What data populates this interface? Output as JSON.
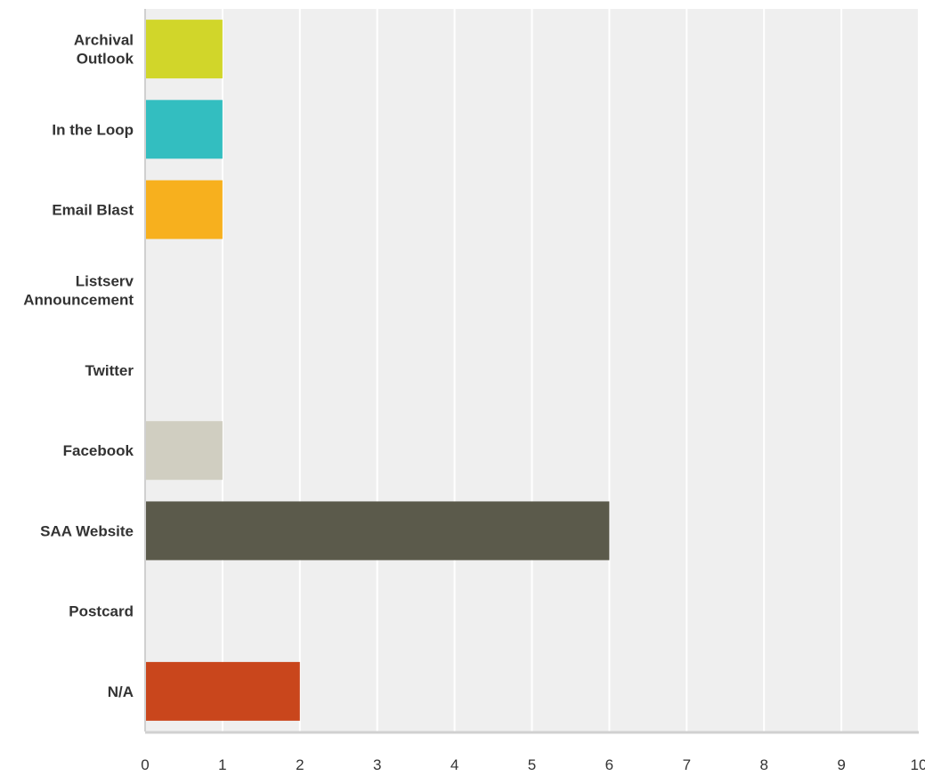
{
  "chart_data": {
    "type": "bar",
    "orientation": "horizontal",
    "title": "",
    "xlabel": "",
    "ylabel": "",
    "categories": [
      [
        "Archival",
        "Outlook"
      ],
      [
        "In the Loop"
      ],
      [
        "Email Blast"
      ],
      [
        "Listserv",
        "Announcement"
      ],
      [
        "Twitter"
      ],
      [
        "Facebook"
      ],
      [
        "SAA Website"
      ],
      [
        "Postcard"
      ],
      [
        "N/A"
      ]
    ],
    "values": [
      1,
      1,
      1,
      0,
      0,
      1,
      6,
      0,
      2
    ],
    "colors": [
      "#d1d62a",
      "#33bec0",
      "#f7b01e",
      "#9c9c9c",
      "#9c9c9c",
      "#d0cec1",
      "#5b5a4b",
      "#9c9c9c",
      "#c9461c"
    ],
    "xlim": [
      0,
      10
    ],
    "ticks": [
      "0",
      "1",
      "2",
      "3",
      "4",
      "5",
      "6",
      "7",
      "8",
      "9",
      "10"
    ],
    "grid": true,
    "legend": "none"
  },
  "style": {
    "plot_background": "#efefef",
    "gridline_color": "#ffffff",
    "axis_color": "#d0d0d0"
  }
}
